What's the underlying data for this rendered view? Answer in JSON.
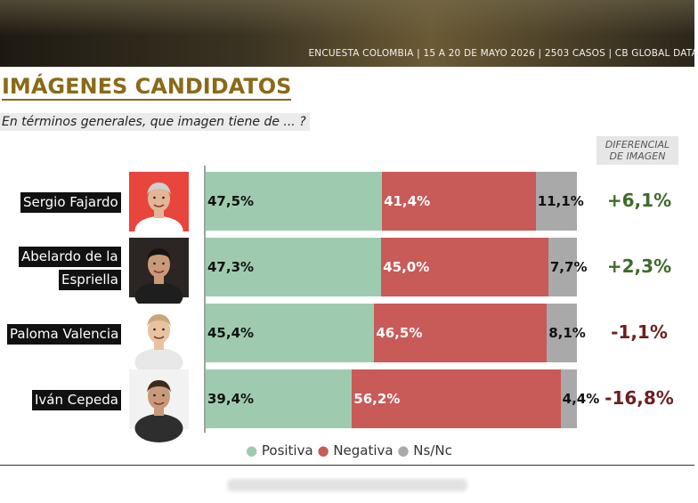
{
  "header": {
    "subtitle": "ENCUESTA COLOMBIA | 15 A 20 DE MAYO 2026 | 2503 CASOS | CB GLOBAL DATA",
    "title": "IMÁGENES CANDIDATOS",
    "question": "En términos generales, que imagen tiene de ... ?",
    "diff_header_line1": "DIFERENCIAL",
    "diff_header_line2": "DE IMAGEN"
  },
  "colors": {
    "positive": "#9ecbb0",
    "negative": "#c85a58",
    "ns": "#a9a9a9",
    "diff_positive": "#3f6b2a",
    "diff_negative": "#6e1f1f",
    "title": "#8a6a18"
  },
  "legend": {
    "positive": "Positiva",
    "negative": "Negativa",
    "ns": "Ns/Nc"
  },
  "chart_data": {
    "type": "bar",
    "stacked": true,
    "orientation": "horizontal",
    "categories": [
      "Sergio Fajardo",
      "Abelardo de la Espriella",
      "Paloma Valencia",
      "Iván Cepeda"
    ],
    "category_lines": [
      [
        "Sergio Fajardo"
      ],
      [
        "Abelardo de la",
        "Espriella"
      ],
      [
        "Paloma Valencia"
      ],
      [
        "Iván Cepeda"
      ]
    ],
    "series": [
      {
        "name": "Positiva",
        "values": [
          47.5,
          47.3,
          45.4,
          39.4
        ],
        "labels": [
          "47,5%",
          "47,3%",
          "45,4%",
          "39,4%"
        ]
      },
      {
        "name": "Negativa",
        "values": [
          41.4,
          45.0,
          46.5,
          56.2
        ],
        "labels": [
          "41,4%",
          "45,0%",
          "46,5%",
          "56,2%"
        ]
      },
      {
        "name": "Ns/Nc",
        "values": [
          11.1,
          7.7,
          8.1,
          4.4
        ],
        "labels": [
          "11,1%",
          "7,7%",
          "8,1%",
          "4,4%"
        ]
      }
    ],
    "differential": [
      "+6,1%",
      "+2,3%",
      "-1,1%",
      "-16,8%"
    ],
    "differential_sign": [
      1,
      1,
      -1,
      -1
    ],
    "xlim": [
      0,
      100
    ],
    "legend_position": "bottom"
  }
}
